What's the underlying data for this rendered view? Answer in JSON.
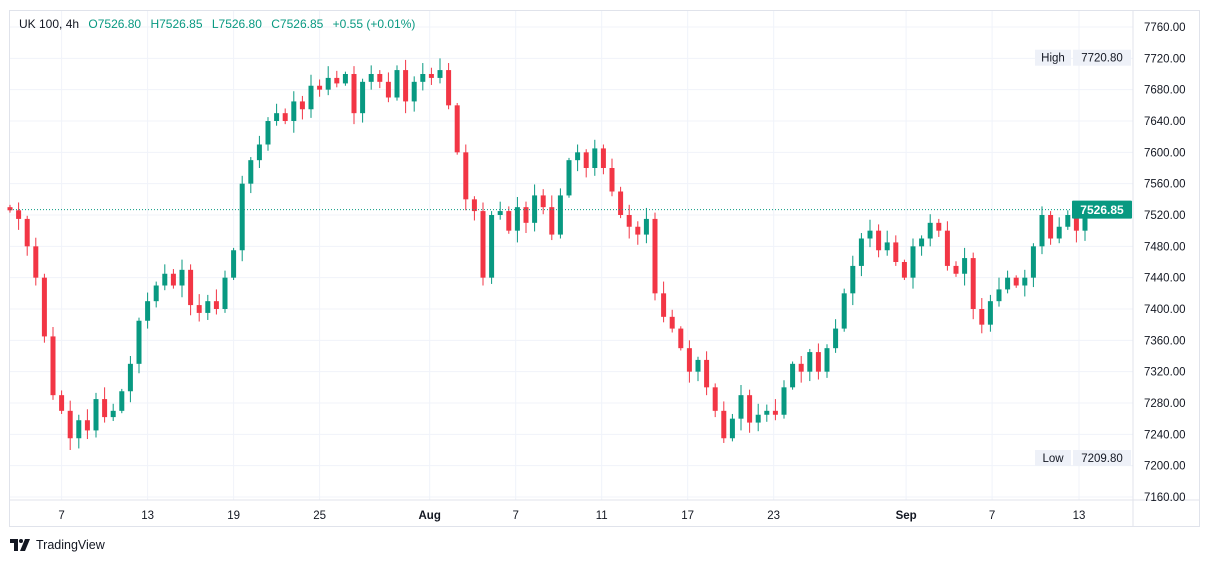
{
  "header": {
    "symbol": "UK 100, 4h",
    "open": "O7526.80",
    "high": "H7526.85",
    "low": "L7526.80",
    "close": "C7526.85",
    "change": "+0.55 (+0.01%)"
  },
  "footer": {
    "brand": "TradingView"
  },
  "colors": {
    "up": "#089981",
    "down": "#f23645",
    "grid": "#f0f3fa",
    "price_line": "#089981"
  },
  "chart_data": {
    "type": "candlestick",
    "title": "UK 100, 4h",
    "ylim": [
      7140,
      7780
    ],
    "y_ticks": [
      "7760.00",
      "7720.00",
      "7680.00",
      "7640.00",
      "7600.00",
      "7560.00",
      "7520.00",
      "7480.00",
      "7440.00",
      "7400.00",
      "7360.00",
      "7320.00",
      "7280.00",
      "7240.00",
      "7200.00",
      "7160.00"
    ],
    "x_ticks": [
      {
        "label": "7",
        "index": 6
      },
      {
        "label": "13",
        "index": 16
      },
      {
        "label": "19",
        "index": 26
      },
      {
        "label": "25",
        "index": 36
      },
      {
        "label": "Aug",
        "index": 48.8,
        "bold": true
      },
      {
        "label": "7",
        "index": 58.8
      },
      {
        "label": "11",
        "index": 68.8
      },
      {
        "label": "17",
        "index": 78.8
      },
      {
        "label": "23",
        "index": 88.8
      },
      {
        "label": "Sep",
        "index": 104.2,
        "bold": true
      },
      {
        "label": "7",
        "index": 114.2
      },
      {
        "label": "13",
        "index": 124.3
      }
    ],
    "first_open": 7530,
    "closes": [
      7526,
      7515,
      7480,
      7440,
      7365,
      7290,
      7270,
      7235,
      7258,
      7245,
      7285,
      7262,
      7270,
      7295,
      7330,
      7385,
      7410,
      7430,
      7445,
      7430,
      7450,
      7405,
      7395,
      7410,
      7400,
      7440,
      7475,
      7560,
      7590,
      7610,
      7640,
      7650,
      7640,
      7665,
      7655,
      7685,
      7680,
      7695,
      7688,
      7700,
      7650,
      7690,
      7700,
      7690,
      7670,
      7705,
      7665,
      7690,
      7700,
      7695,
      7705,
      7660,
      7600,
      7540,
      7525,
      7440,
      7520,
      7525,
      7500,
      7530,
      7510,
      7545,
      7530,
      7495,
      7545,
      7590,
      7600,
      7580,
      7605,
      7580,
      7550,
      7520,
      7505,
      7495,
      7515,
      7420,
      7390,
      7375,
      7350,
      7320,
      7335,
      7300,
      7270,
      7235,
      7260,
      7290,
      7255,
      7265,
      7270,
      7265,
      7300,
      7330,
      7320,
      7345,
      7320,
      7350,
      7375,
      7420,
      7455,
      7490,
      7500,
      7475,
      7485,
      7460,
      7440,
      7480,
      7490,
      7510,
      7500,
      7455,
      7445,
      7465,
      7400,
      7380,
      7410,
      7425,
      7440,
      7430,
      7440,
      7480,
      7520,
      7490,
      7505,
      7520,
      7500,
      7526.85
    ],
    "last_price": "7526.85",
    "high_label": "High",
    "high_value": "7720.80",
    "low_label": "Low",
    "low_value": "7209.80"
  }
}
